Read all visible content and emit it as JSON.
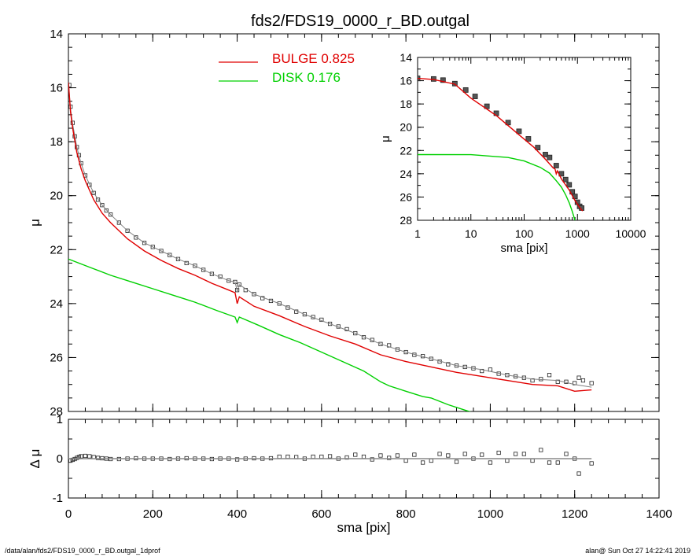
{
  "title": "fds2/FDS19_0000_r_BD.outgal",
  "footer": {
    "left": "/data/alan/fds2/FDS19_0000_r_BD.outgal_1dprof",
    "right": "alan@  Sun Oct 27 14:22:41 2019"
  },
  "legend": [
    {
      "label": "BULGE  0.825",
      "color": "#e00000"
    },
    {
      "label": "DISK  0.176",
      "color": "#00d000"
    }
  ],
  "colors": {
    "bulge": "#e00000",
    "disk": "#00d000",
    "model": "#808080",
    "data": "#000000"
  },
  "chart_data": [
    {
      "type": "line",
      "panel": "main",
      "xlabel": "",
      "ylabel": "μ",
      "xlim": [
        0,
        1400
      ],
      "ylim": [
        28,
        14
      ],
      "y_inverted": true,
      "x_ticks": [
        "0",
        "200",
        "400",
        "600",
        "800",
        "1000",
        "1200",
        "1400"
      ],
      "y_ticks": [
        "14",
        "16",
        "18",
        "20",
        "22",
        "24",
        "26",
        "28"
      ],
      "series": [
        {
          "name": "",
          "kind": "data-points",
          "x": [
            2,
            5,
            10,
            15,
            20,
            25,
            30,
            40,
            50,
            60,
            70,
            80,
            90,
            100,
            120,
            140,
            160,
            180,
            200,
            220,
            240,
            260,
            280,
            300,
            320,
            340,
            360,
            380,
            395,
            400,
            405,
            420,
            440,
            460,
            480,
            500,
            520,
            540,
            560,
            580,
            600,
            620,
            640,
            660,
            680,
            700,
            720,
            740,
            760,
            780,
            800,
            820,
            840,
            860,
            880,
            900,
            920,
            940,
            960,
            980,
            1000,
            1020,
            1040,
            1060,
            1080,
            1100,
            1120,
            1140,
            1160,
            1180,
            1200,
            1210,
            1220,
            1240
          ],
          "y": [
            15.9,
            16.7,
            17.3,
            17.8,
            18.2,
            18.5,
            18.8,
            19.25,
            19.6,
            19.9,
            20.15,
            20.35,
            20.55,
            20.7,
            21.0,
            21.3,
            21.55,
            21.75,
            21.9,
            22.05,
            22.2,
            22.35,
            22.5,
            22.6,
            22.75,
            22.9,
            23.0,
            23.15,
            23.2,
            23.5,
            23.3,
            23.5,
            23.65,
            23.8,
            23.9,
            24.0,
            24.15,
            24.3,
            24.4,
            24.5,
            24.6,
            24.75,
            24.85,
            24.95,
            25.1,
            25.25,
            25.35,
            25.5,
            25.55,
            25.7,
            25.8,
            25.9,
            25.95,
            26.05,
            26.15,
            26.25,
            26.3,
            26.35,
            26.4,
            26.5,
            26.45,
            26.6,
            26.65,
            26.7,
            26.75,
            26.85,
            26.8,
            26.65,
            26.9,
            26.9,
            26.95,
            26.75,
            26.85,
            26.95
          ]
        },
        {
          "name": "",
          "kind": "model",
          "x": [
            0,
            5,
            10,
            20,
            30,
            40,
            60,
            80,
            100,
            140,
            180,
            220,
            260,
            300,
            340,
            380,
            395,
            400,
            405,
            440,
            500,
            560,
            620,
            680,
            740,
            800,
            860,
            920,
            980,
            1040,
            1100,
            1160,
            1200,
            1240
          ],
          "y": [
            15.8,
            16.8,
            17.35,
            18.2,
            18.8,
            19.25,
            19.9,
            20.35,
            20.7,
            21.3,
            21.75,
            22.05,
            22.35,
            22.6,
            22.9,
            23.15,
            23.2,
            23.55,
            23.3,
            23.65,
            24.0,
            24.4,
            24.75,
            25.1,
            25.5,
            25.8,
            26.05,
            26.3,
            26.45,
            26.65,
            26.8,
            26.85,
            27.0,
            27.1
          ]
        },
        {
          "name": "BULGE  0.825",
          "kind": "component",
          "x": [
            0,
            5,
            10,
            20,
            30,
            40,
            60,
            80,
            100,
            140,
            180,
            220,
            260,
            300,
            340,
            380,
            395,
            400,
            405,
            440,
            500,
            560,
            620,
            680,
            740,
            800,
            860,
            920,
            980,
            1040,
            1100,
            1160,
            1200,
            1240
          ],
          "y": [
            15.8,
            16.9,
            17.5,
            18.4,
            19.0,
            19.45,
            20.15,
            20.65,
            21.0,
            21.6,
            22.05,
            22.4,
            22.7,
            22.95,
            23.25,
            23.5,
            23.6,
            24.0,
            23.75,
            24.1,
            24.45,
            24.85,
            25.2,
            25.5,
            25.9,
            26.15,
            26.35,
            26.55,
            26.7,
            26.85,
            27.0,
            27.05,
            27.25,
            27.2
          ]
        },
        {
          "name": "DISK  0.176",
          "kind": "component",
          "x": [
            0,
            50,
            100,
            150,
            200,
            250,
            300,
            350,
            395,
            400,
            405,
            450,
            500,
            550,
            600,
            650,
            700,
            740,
            760,
            800,
            840,
            860,
            900,
            940,
            960
          ],
          "y": [
            22.35,
            22.65,
            22.95,
            23.2,
            23.45,
            23.7,
            23.95,
            24.25,
            24.5,
            24.7,
            24.5,
            24.8,
            25.15,
            25.45,
            25.8,
            26.15,
            26.5,
            26.9,
            27.05,
            27.25,
            27.45,
            27.5,
            27.75,
            27.95,
            28.05
          ]
        }
      ]
    },
    {
      "type": "scatter",
      "panel": "residual",
      "xlabel": "sma [pix]",
      "ylabel": "Δ μ",
      "xlim": [
        0,
        1400
      ],
      "ylim": [
        -1,
        1
      ],
      "x_ticks": [
        "0",
        "200",
        "400",
        "600",
        "800",
        "1000",
        "1200",
        "1400"
      ],
      "y_ticks": [
        "1",
        "0",
        "-1"
      ],
      "series": [
        {
          "name": "",
          "x": [
            2,
            5,
            10,
            15,
            20,
            25,
            30,
            40,
            50,
            60,
            70,
            80,
            90,
            100,
            120,
            140,
            160,
            180,
            200,
            220,
            240,
            260,
            280,
            300,
            320,
            340,
            360,
            380,
            400,
            420,
            440,
            460,
            480,
            500,
            520,
            540,
            560,
            580,
            600,
            620,
            640,
            660,
            680,
            700,
            720,
            740,
            760,
            780,
            800,
            820,
            840,
            860,
            880,
            900,
            920,
            940,
            960,
            980,
            1000,
            1020,
            1040,
            1060,
            1080,
            1100,
            1120,
            1140,
            1160,
            1180,
            1200,
            1210,
            1240
          ],
          "y": [
            -0.05,
            -0.05,
            -0.03,
            -0.01,
            0.02,
            0.04,
            0.06,
            0.07,
            0.06,
            0.04,
            0.02,
            0.01,
            0.0,
            -0.01,
            -0.01,
            0.0,
            0.01,
            0.0,
            0.0,
            0.0,
            -0.01,
            0.0,
            0.01,
            0.0,
            0.0,
            -0.01,
            0.0,
            0.0,
            -0.02,
            0.0,
            0.01,
            0.0,
            0.01,
            0.05,
            0.05,
            0.04,
            0.0,
            0.05,
            0.05,
            0.06,
            0.0,
            0.03,
            0.1,
            0.05,
            -0.02,
            0.08,
            0.02,
            0.08,
            -0.05,
            0.1,
            -0.1,
            -0.05,
            0.12,
            0.08,
            -0.08,
            0.12,
            0.0,
            0.1,
            -0.1,
            0.15,
            -0.05,
            0.12,
            0.12,
            -0.05,
            0.22,
            -0.1,
            -0.1,
            0.12,
            0.0,
            -0.38,
            -0.12
          ]
        },
        {
          "name": "",
          "kind": "zero-line",
          "x": [
            0,
            1240
          ],
          "y": [
            0,
            0
          ]
        }
      ]
    },
    {
      "type": "line",
      "panel": "inset",
      "xlabel": "sma [pix]",
      "ylabel": "μ",
      "x_scale": "log",
      "xlim": [
        1,
        10000
      ],
      "ylim": [
        28,
        14
      ],
      "y_inverted": true,
      "x_ticks": [
        "1",
        "10",
        "100",
        "1000",
        "10000"
      ],
      "y_ticks": [
        "14",
        "16",
        "18",
        "20",
        "22",
        "24",
        "26",
        "28"
      ],
      "series": [
        {
          "name": "",
          "kind": "data-points",
          "x": [
            1,
            2,
            3,
            5,
            8,
            12,
            20,
            30,
            50,
            80,
            120,
            180,
            250,
            300,
            400,
            500,
            600,
            700,
            800,
            900,
            1000,
            1100,
            1200
          ],
          "y": [
            15.8,
            15.85,
            15.95,
            16.25,
            16.8,
            17.35,
            18.2,
            18.8,
            19.6,
            20.35,
            21.0,
            21.75,
            22.35,
            22.6,
            23.3,
            24.0,
            24.5,
            24.95,
            25.55,
            25.95,
            26.45,
            26.8,
            26.95
          ]
        },
        {
          "name": "BULGE  0.825",
          "kind": "component",
          "x": [
            1,
            2,
            5,
            10,
            30,
            80,
            150,
            250,
            350,
            380,
            400,
            420,
            500,
            700,
            900,
            1100,
            1250
          ],
          "y": [
            15.8,
            15.9,
            16.3,
            17.5,
            19.0,
            20.65,
            21.7,
            22.75,
            23.5,
            23.6,
            24.0,
            23.75,
            24.45,
            25.4,
            26.3,
            26.9,
            27.2
          ]
        },
        {
          "name": "DISK  0.176",
          "kind": "component",
          "x": [
            1,
            10,
            50,
            100,
            200,
            300,
            400,
            500,
            600,
            700,
            800,
            900
          ],
          "y": [
            22.35,
            22.36,
            22.6,
            22.9,
            23.45,
            23.95,
            24.6,
            25.15,
            25.8,
            26.5,
            27.25,
            28.0
          ]
        }
      ]
    }
  ]
}
